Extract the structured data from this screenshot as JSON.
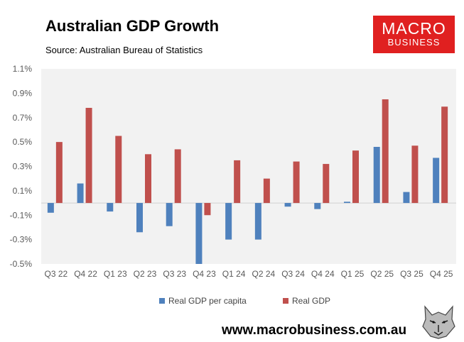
{
  "chart_data": {
    "type": "bar",
    "title": "Australian GDP Growth",
    "subtitle": "Source: Australian Bureau of Statistics",
    "categories": [
      "Q3 22",
      "Q4 22",
      "Q1 23",
      "Q2 23",
      "Q3 23",
      "Q4 23",
      "Q1 24",
      "Q2 24",
      "Q3 24",
      "Q4 24",
      "Q1 25",
      "Q2 25",
      "Q3 25",
      "Q4 25"
    ],
    "series": [
      {
        "name": "Real GDP per capita",
        "color": "#4f81bd",
        "values": [
          -0.08,
          0.16,
          -0.07,
          -0.24,
          -0.19,
          -0.5,
          -0.3,
          -0.3,
          -0.03,
          -0.05,
          0.01,
          0.46,
          0.09,
          0.37
        ]
      },
      {
        "name": "Real GDP",
        "color": "#c0504d",
        "values": [
          0.5,
          0.78,
          0.55,
          0.4,
          0.44,
          -0.1,
          0.35,
          0.2,
          0.34,
          0.32,
          0.43,
          0.85,
          0.47,
          0.79
        ]
      }
    ],
    "ylim": [
      -0.5,
      1.1
    ],
    "yticks": [
      "1.1%",
      "0.9%",
      "0.7%",
      "0.5%",
      "0.3%",
      "0.1%",
      "-0.1%",
      "-0.3%",
      "-0.5%"
    ],
    "ytick_values": [
      1.1,
      0.9,
      0.7,
      0.5,
      0.3,
      0.1,
      -0.1,
      -0.3,
      -0.5
    ],
    "grid": false,
    "legend_position": "bottom",
    "plot_background": "#f2f2f2"
  },
  "branding": {
    "logo_line1": "MACRO",
    "logo_line2": "BUSINESS",
    "logo_color": "#e02020",
    "url": "www.macrobusiness.com.au"
  }
}
